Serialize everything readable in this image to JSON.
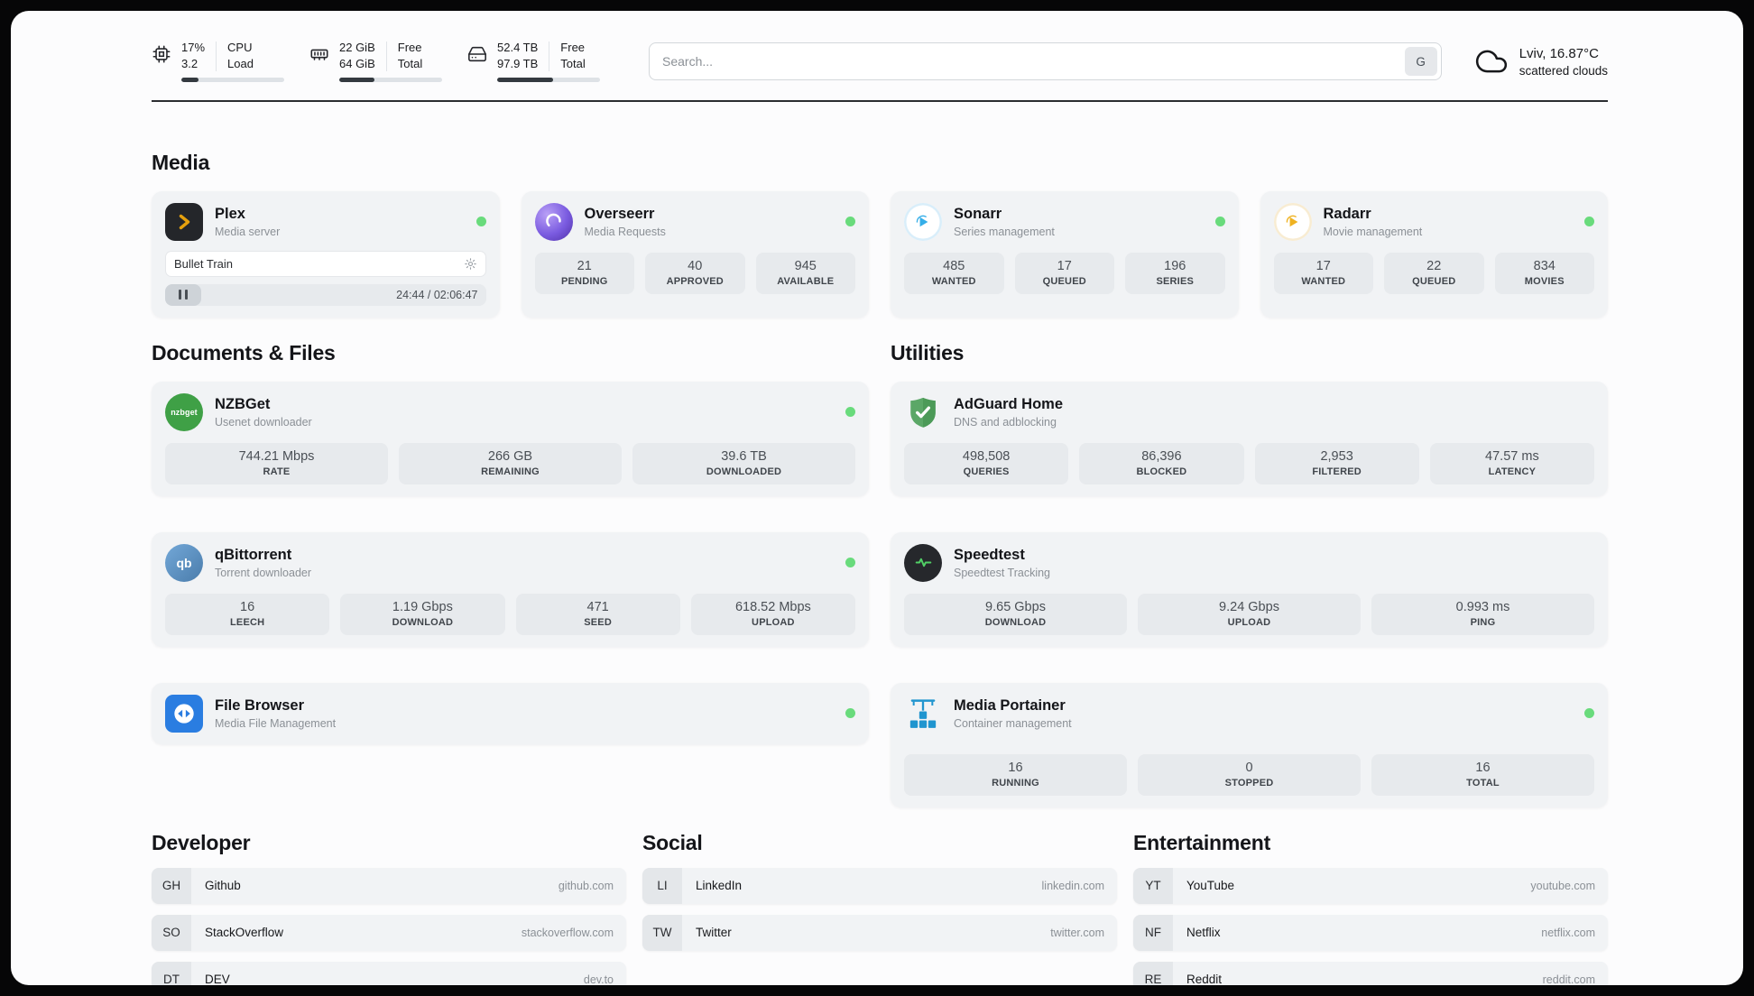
{
  "colors": {
    "status_online": "#69db7c",
    "plex_accent": "#e5a00d",
    "overseerr_purple": "#7a5be0",
    "sonarr_blue": "#35aee8",
    "radarr_amber": "#efb221",
    "nzbget_green": "#3fa046",
    "qbittorrent_blue": "#5a9fd4",
    "filebrowser_blue": "#2a7de1",
    "adguard_green": "#5ba767",
    "speedtest_green": "#51cf66",
    "portainer_blue": "#2095cf"
  },
  "topbar": {
    "cpu": {
      "value_top": "17%",
      "value_bottom": "3.2",
      "label_top": "CPU",
      "label_bottom": "Load",
      "progress_pct": 17
    },
    "ram": {
      "value_top": "22 GiB",
      "value_bottom": "64 GiB",
      "label_top": "Free",
      "label_bottom": "Total",
      "progress_pct": 34
    },
    "disk": {
      "value_top": "52.4 TB",
      "value_bottom": "97.9 TB",
      "label_top": "Free",
      "label_bottom": "Total",
      "progress_pct": 54
    },
    "search": {
      "placeholder": "Search...",
      "button_label": "G"
    },
    "weather": {
      "location": "Lviv, 16.87°C",
      "condition": "scattered clouds"
    }
  },
  "media": {
    "heading": "Media",
    "plex": {
      "title": "Plex",
      "subtitle": "Media server",
      "now_playing": "Bullet Train",
      "time": "24:44 / 02:06:47"
    },
    "overseerr": {
      "title": "Overseerr",
      "subtitle": "Media Requests",
      "stats": [
        {
          "value": "21",
          "label": "PENDING"
        },
        {
          "value": "40",
          "label": "APPROVED"
        },
        {
          "value": "945",
          "label": "AVAILABLE"
        }
      ]
    },
    "sonarr": {
      "title": "Sonarr",
      "subtitle": "Series management",
      "stats": [
        {
          "value": "485",
          "label": "WANTED"
        },
        {
          "value": "17",
          "label": "QUEUED"
        },
        {
          "value": "196",
          "label": "SERIES"
        }
      ]
    },
    "radarr": {
      "title": "Radarr",
      "subtitle": "Movie management",
      "stats": [
        {
          "value": "17",
          "label": "WANTED"
        },
        {
          "value": "22",
          "label": "QUEUED"
        },
        {
          "value": "834",
          "label": "MOVIES"
        }
      ]
    }
  },
  "documents": {
    "heading": "Documents & Files",
    "nzbget": {
      "title": "NZBGet",
      "subtitle": "Usenet downloader",
      "icon_text": "nzbget",
      "stats": [
        {
          "value": "744.21 Mbps",
          "label": "RATE"
        },
        {
          "value": "266 GB",
          "label": "REMAINING"
        },
        {
          "value": "39.6 TB",
          "label": "DOWNLOADED"
        }
      ]
    },
    "qbittorrent": {
      "title": "qBittorrent",
      "subtitle": "Torrent downloader",
      "icon_text": "qb",
      "stats": [
        {
          "value": "16",
          "label": "LEECH"
        },
        {
          "value": "1.19 Gbps",
          "label": "DOWNLOAD"
        },
        {
          "value": "471",
          "label": "SEED"
        },
        {
          "value": "618.52 Mbps",
          "label": "UPLOAD"
        }
      ]
    },
    "filebrowser": {
      "title": "File Browser",
      "subtitle": "Media File Management"
    }
  },
  "utilities": {
    "heading": "Utilities",
    "adguard": {
      "title": "AdGuard Home",
      "subtitle": "DNS and adblocking",
      "stats": [
        {
          "value": "498,508",
          "label": "QUERIES"
        },
        {
          "value": "86,396",
          "label": "BLOCKED"
        },
        {
          "value": "2,953",
          "label": "FILTERED"
        },
        {
          "value": "47.57 ms",
          "label": "LATENCY"
        }
      ]
    },
    "speedtest": {
      "title": "Speedtest",
      "subtitle": "Speedtest Tracking",
      "stats": [
        {
          "value": "9.65 Gbps",
          "label": "DOWNLOAD"
        },
        {
          "value": "9.24 Gbps",
          "label": "UPLOAD"
        },
        {
          "value": "0.993 ms",
          "label": "PING"
        }
      ]
    },
    "portainer": {
      "title": "Media Portainer",
      "subtitle": "Container management",
      "stats": [
        {
          "value": "16",
          "label": "RUNNING"
        },
        {
          "value": "0",
          "label": "STOPPED"
        },
        {
          "value": "16",
          "label": "TOTAL"
        }
      ]
    }
  },
  "bookmarks": [
    {
      "heading": "Developer",
      "items": [
        {
          "abbr": "GH",
          "name": "Github",
          "url": "github.com"
        },
        {
          "abbr": "SO",
          "name": "StackOverflow",
          "url": "stackoverflow.com"
        },
        {
          "abbr": "DT",
          "name": "DEV",
          "url": "dev.to"
        }
      ]
    },
    {
      "heading": "Social",
      "items": [
        {
          "abbr": "LI",
          "name": "LinkedIn",
          "url": "linkedin.com"
        },
        {
          "abbr": "TW",
          "name": "Twitter",
          "url": "twitter.com"
        }
      ]
    },
    {
      "heading": "Entertainment",
      "items": [
        {
          "abbr": "YT",
          "name": "YouTube",
          "url": "youtube.com"
        },
        {
          "abbr": "NF",
          "name": "Netflix",
          "url": "netflix.com"
        },
        {
          "abbr": "RE",
          "name": "Reddit",
          "url": "reddit.com"
        }
      ]
    }
  ]
}
